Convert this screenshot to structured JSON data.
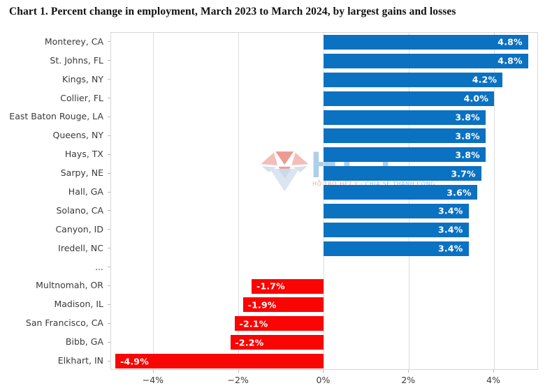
{
  "watermark": {
    "brand": "HCT",
    "tagline_left": "HỖ TRỢ HẾT Ý",
    "tagline_right": "- CHIA SẺ THÀNH CÔNG",
    "diamond_icon_colors": {
      "crown_light": "#eb8a7e",
      "crown_dark": "#dd4a3c",
      "pavilion_light": "#aec8e2",
      "pavilion_mid": "#bed1e6"
    }
  },
  "chart_data": {
    "type": "bar",
    "orientation": "horizontal",
    "title": "Chart 1. Percent change in employment, March 2023 to March 2024, by largest gains and losses",
    "categories": [
      "Monterey, CA",
      "St. Johns, FL",
      "Kings, NY",
      "Collier, FL",
      "East Baton Rouge, LA",
      "Queens, NY",
      "Hays, TX",
      "Sarpy, NE",
      "Hall, GA",
      "Solano, CA",
      "Canyon, ID",
      "Iredell, NC",
      "...",
      "Multnomah, OR",
      "Madison, IL",
      "San Francisco, CA",
      "Bibb, GA",
      "Elkhart, IN"
    ],
    "values": [
      4.8,
      4.8,
      4.2,
      4.0,
      3.8,
      3.8,
      3.8,
      3.7,
      3.6,
      3.4,
      3.4,
      3.4,
      null,
      -1.7,
      -1.9,
      -2.1,
      -2.2,
      -4.9
    ],
    "value_labels": [
      "4.8%",
      "4.8%",
      "4.2%",
      "4.0%",
      "3.8%",
      "3.8%",
      "3.8%",
      "3.7%",
      "3.6%",
      "3.4%",
      "3.4%",
      "3.4%",
      "",
      "-1.7%",
      "-1.9%",
      "-2.1%",
      "-2.2%",
      "-4.9%"
    ],
    "x_ticks": [
      {
        "value": -4,
        "label": "−4%"
      },
      {
        "value": -2,
        "label": "−2%"
      },
      {
        "value": 0,
        "label": "0%"
      },
      {
        "value": 2,
        "label": "2%"
      },
      {
        "value": 4,
        "label": "4%"
      }
    ],
    "xlim": [
      -5.0,
      5.05
    ],
    "grid": "vertical",
    "legend": "none",
    "colors": {
      "positive": "#0b71c1",
      "negative": "#f90503"
    }
  }
}
